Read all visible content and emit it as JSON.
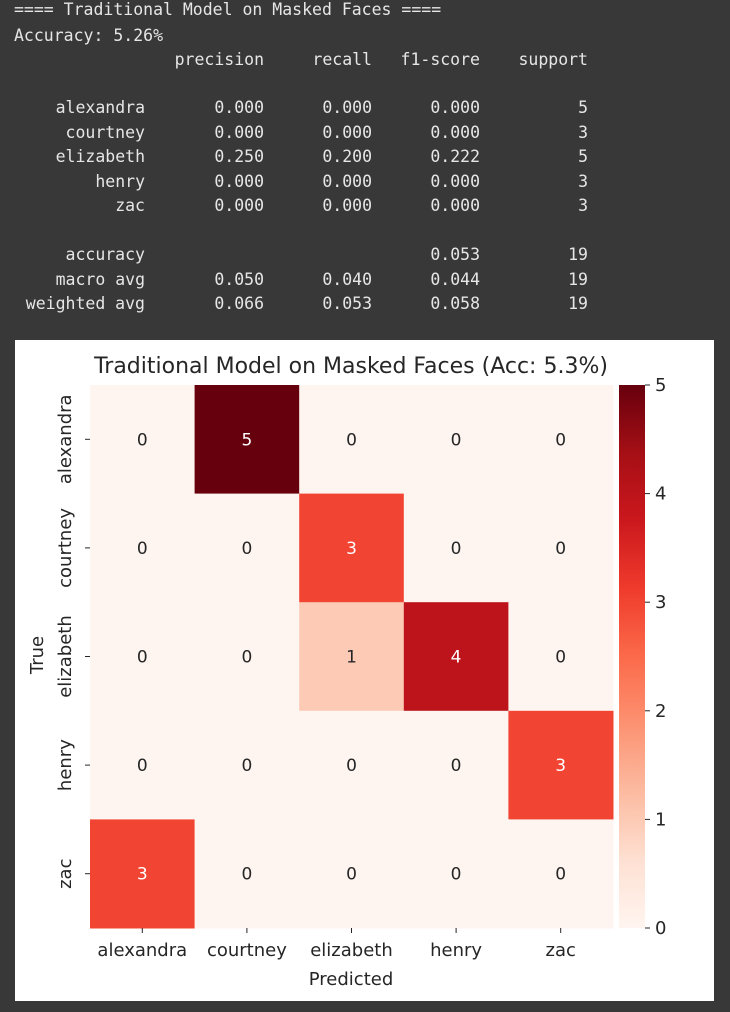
{
  "console": {
    "header": "==== Traditional Model on Masked Faces ====",
    "accuracy_line": "Accuracy: 5.26%",
    "columns": [
      "precision",
      "recall",
      "f1-score",
      "support"
    ],
    "class_rows": [
      {
        "label": "alexandra",
        "precision": "0.000",
        "recall": "0.000",
        "f1": "0.000",
        "support": "5"
      },
      {
        "label": "courtney",
        "precision": "0.000",
        "recall": "0.000",
        "f1": "0.000",
        "support": "3"
      },
      {
        "label": "elizabeth",
        "precision": "0.250",
        "recall": "0.200",
        "f1": "0.222",
        "support": "5"
      },
      {
        "label": "henry",
        "precision": "0.000",
        "recall": "0.000",
        "f1": "0.000",
        "support": "3"
      },
      {
        "label": "zac",
        "precision": "0.000",
        "recall": "0.000",
        "f1": "0.000",
        "support": "3"
      }
    ],
    "summary_rows": [
      {
        "label": "accuracy",
        "precision": "",
        "recall": "",
        "f1": "0.053",
        "support": "19"
      },
      {
        "label": "macro avg",
        "precision": "0.050",
        "recall": "0.040",
        "f1": "0.044",
        "support": "19"
      },
      {
        "label": "weighted avg",
        "precision": "0.066",
        "recall": "0.053",
        "f1": "0.058",
        "support": "19"
      }
    ]
  },
  "chart_data": {
    "type": "heatmap",
    "title": "Traditional Model on Masked Faces (Acc: 5.3%)",
    "xlabel": "Predicted",
    "ylabel": "True",
    "x_categories": [
      "alexandra",
      "courtney",
      "elizabeth",
      "henry",
      "zac"
    ],
    "y_categories": [
      "alexandra",
      "courtney",
      "elizabeth",
      "henry",
      "zac"
    ],
    "values": [
      [
        0,
        5,
        0,
        0,
        0
      ],
      [
        0,
        0,
        3,
        0,
        0
      ],
      [
        0,
        0,
        1,
        4,
        0
      ],
      [
        0,
        0,
        0,
        0,
        3
      ],
      [
        3,
        0,
        0,
        0,
        0
      ]
    ],
    "colormap": "Reds",
    "vmin": 0,
    "vmax": 5,
    "colorbar_ticks": [
      0,
      1,
      2,
      3,
      4,
      5
    ]
  }
}
